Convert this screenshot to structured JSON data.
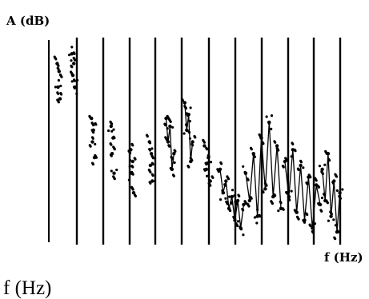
{
  "chart_data": {
    "type": "scatter",
    "title": "",
    "ylabel": "A (dB)",
    "xlabel": "f (Hz)",
    "grid": "vertical-lines",
    "legend": "none",
    "series": [
      {
        "values": [
          [
            0.3,
            0.9
          ],
          [
            0.35,
            0.78
          ],
          [
            0.4,
            0.86
          ],
          [
            0.45,
            0.72
          ]
        ]
      },
      {
        "values": [
          [
            1.05,
            0.95
          ],
          [
            1.1,
            0.84
          ],
          [
            1.15,
            0.9
          ],
          [
            1.2,
            0.78
          ]
        ]
      },
      {
        "values": [
          [
            2.05,
            0.62
          ],
          [
            2.1,
            0.5
          ],
          [
            2.15,
            0.56
          ],
          [
            2.2,
            0.42
          ]
        ]
      },
      {
        "values": [
          [
            3.05,
            0.58
          ],
          [
            3.1,
            0.44
          ],
          [
            3.15,
            0.52
          ],
          [
            3.2,
            0.34
          ]
        ]
      },
      {
        "values": [
          [
            4.05,
            0.46
          ],
          [
            4.1,
            0.34
          ],
          [
            4.15,
            0.4
          ],
          [
            4.2,
            0.24
          ]
        ]
      },
      {
        "values": [
          [
            5.0,
            0.5
          ],
          [
            5.05,
            0.38
          ],
          [
            5.1,
            0.44
          ],
          [
            5.15,
            0.3
          ]
        ]
      },
      {
        "values": [
          [
            5.85,
            0.62
          ],
          [
            5.95,
            0.5
          ],
          [
            6.05,
            0.58
          ],
          [
            6.15,
            0.36
          ],
          [
            6.25,
            0.44
          ]
        ]
      },
      {
        "values": [
          [
            6.8,
            0.7
          ],
          [
            6.9,
            0.56
          ],
          [
            7.0,
            0.64
          ],
          [
            7.1,
            0.4
          ],
          [
            7.2,
            0.5
          ]
        ]
      },
      {
        "values": [
          [
            7.8,
            0.48
          ],
          [
            7.9,
            0.36
          ],
          [
            8.0,
            0.42
          ],
          [
            8.1,
            0.3
          ]
        ]
      },
      {
        "values": [
          [
            8.6,
            0.36
          ],
          [
            8.75,
            0.24
          ],
          [
            8.9,
            0.3
          ],
          [
            9.05,
            0.16
          ],
          [
            9.2,
            0.22
          ],
          [
            9.35,
            0.1
          ],
          [
            9.5,
            0.2
          ],
          [
            9.65,
            0.06
          ],
          [
            9.8,
            0.18
          ]
        ]
      },
      {
        "values": [
          [
            9.9,
            0.34
          ],
          [
            10.1,
            0.2
          ],
          [
            10.3,
            0.44
          ],
          [
            10.5,
            0.12
          ],
          [
            10.7,
            0.52
          ],
          [
            10.9,
            0.26
          ],
          [
            11.1,
            0.6
          ],
          [
            11.3,
            0.22
          ],
          [
            11.5,
            0.48
          ],
          [
            11.7,
            0.16
          ]
        ]
      },
      {
        "values": [
          [
            11.9,
            0.4
          ],
          [
            12.1,
            0.22
          ],
          [
            12.3,
            0.46
          ],
          [
            12.5,
            0.14
          ],
          [
            12.7,
            0.38
          ],
          [
            12.9,
            0.1
          ],
          [
            13.1,
            0.32
          ],
          [
            13.3,
            0.06
          ],
          [
            13.5,
            0.28
          ],
          [
            13.7,
            0.18
          ]
        ]
      },
      {
        "values": [
          [
            13.8,
            0.36
          ],
          [
            13.95,
            0.2
          ],
          [
            14.1,
            0.44
          ],
          [
            14.25,
            0.12
          ],
          [
            14.4,
            0.3
          ],
          [
            14.55,
            0.04
          ],
          [
            14.7,
            0.24
          ]
        ]
      }
    ]
  }
}
